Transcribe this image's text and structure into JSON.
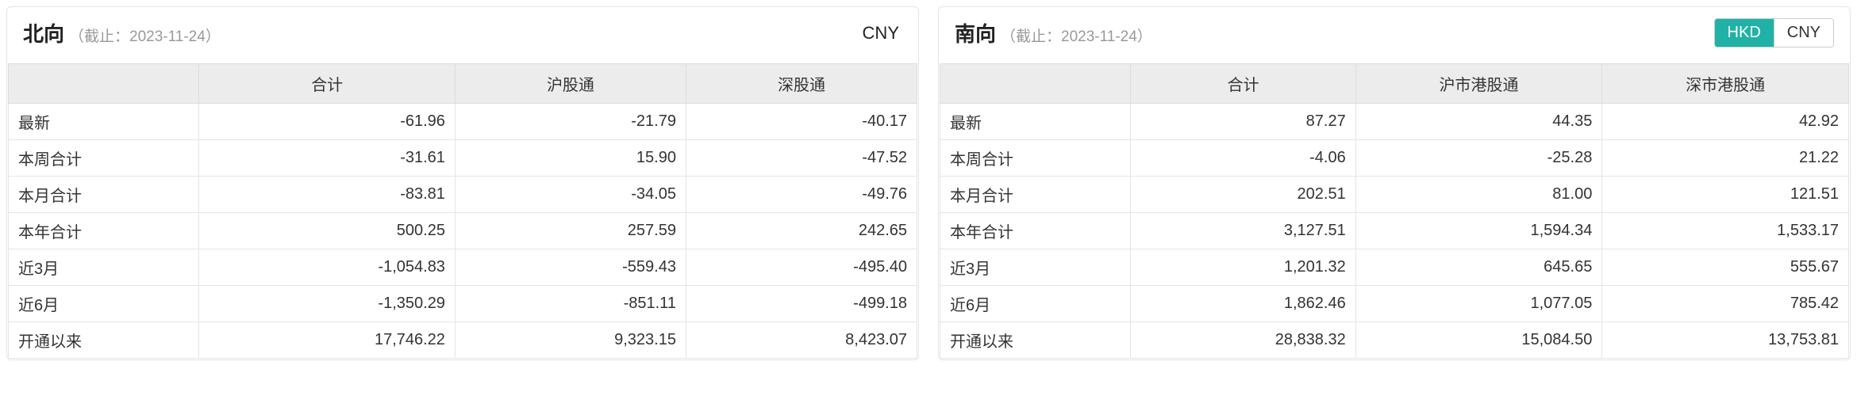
{
  "panels": [
    {
      "title": "北向",
      "subtitle": "（截止：2023-11-24）",
      "currency_mode": "single",
      "currency_single": "CNY",
      "columns": [
        "",
        "合计",
        "沪股通",
        "深股通"
      ],
      "rows": [
        {
          "label": "最新",
          "c1": "-61.96",
          "c2": "-21.79",
          "c3": "-40.17"
        },
        {
          "label": "本周合计",
          "c1": "-31.61",
          "c2": "15.90",
          "c3": "-47.52"
        },
        {
          "label": "本月合计",
          "c1": "-83.81",
          "c2": "-34.05",
          "c3": "-49.76"
        },
        {
          "label": "本年合计",
          "c1": "500.25",
          "c2": "257.59",
          "c3": "242.65"
        },
        {
          "label": "近3月",
          "c1": "-1,054.83",
          "c2": "-559.43",
          "c3": "-495.40"
        },
        {
          "label": "近6月",
          "c1": "-1,350.29",
          "c2": "-851.11",
          "c3": "-499.18"
        },
        {
          "label": "开通以来",
          "c1": "17,746.22",
          "c2": "9,323.15",
          "c3": "8,423.07"
        }
      ]
    },
    {
      "title": "南向",
      "subtitle": "（截止：2023-11-24）",
      "currency_mode": "toggle",
      "currency_options": [
        "HKD",
        "CNY"
      ],
      "currency_active": "HKD",
      "columns": [
        "",
        "合计",
        "沪市港股通",
        "深市港股通"
      ],
      "rows": [
        {
          "label": "最新",
          "c1": "87.27",
          "c2": "44.35",
          "c3": "42.92"
        },
        {
          "label": "本周合计",
          "c1": "-4.06",
          "c2": "-25.28",
          "c3": "21.22"
        },
        {
          "label": "本月合计",
          "c1": "202.51",
          "c2": "81.00",
          "c3": "121.51"
        },
        {
          "label": "本年合计",
          "c1": "3,127.51",
          "c2": "1,594.34",
          "c3": "1,533.17"
        },
        {
          "label": "近3月",
          "c1": "1,201.32",
          "c2": "645.65",
          "c3": "555.67"
        },
        {
          "label": "近6月",
          "c1": "1,862.46",
          "c2": "1,077.05",
          "c3": "785.42"
        },
        {
          "label": "开通以来",
          "c1": "28,838.32",
          "c2": "15,084.50",
          "c3": "13,753.81"
        }
      ]
    }
  ],
  "colors": {
    "border": "#e5e5e5",
    "header_bg": "#ececec",
    "toggle_active_bg": "#20b2a6",
    "subtitle": "#999999",
    "text": "#333333"
  }
}
